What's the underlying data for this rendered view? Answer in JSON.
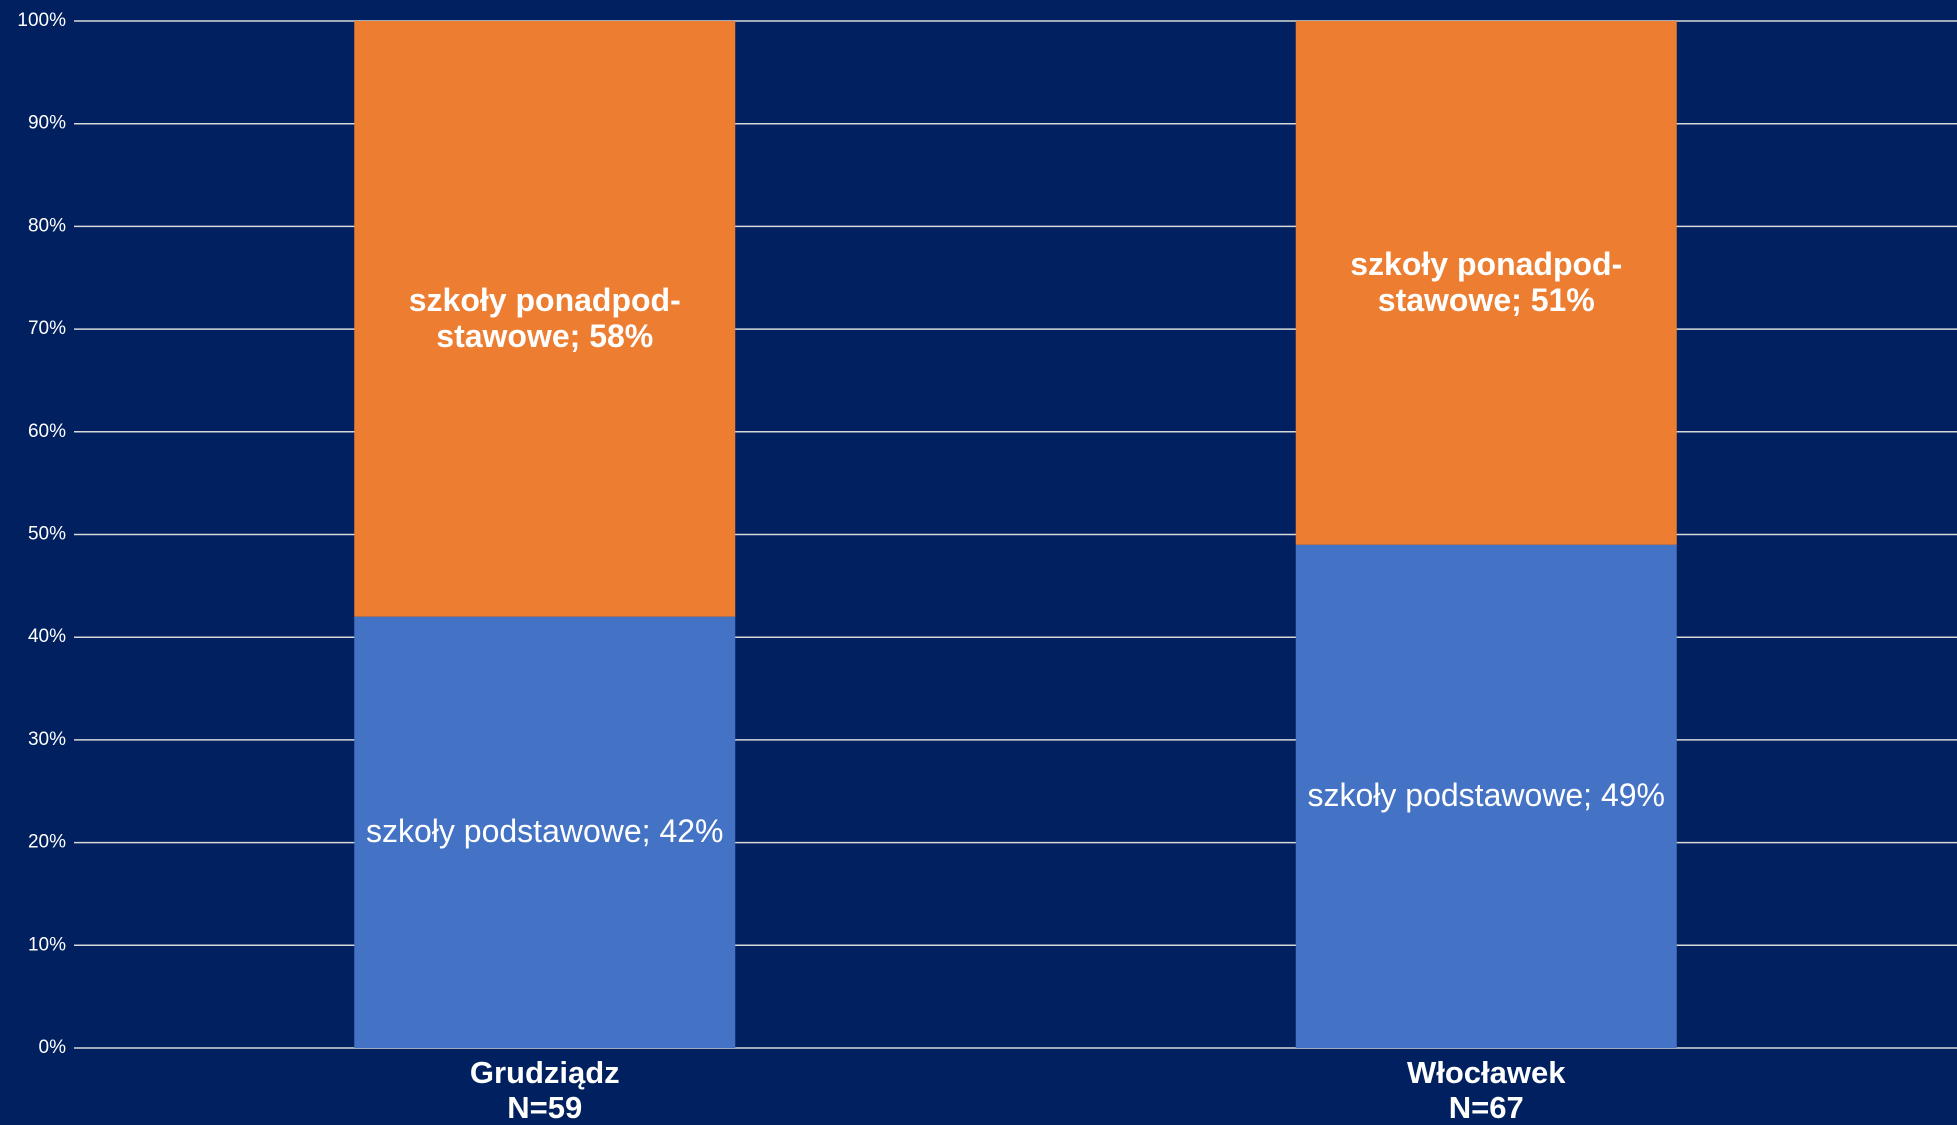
{
  "chart_data": {
    "type": "stacked_bar",
    "categories": [
      "Grudziądz\nN=59",
      "Włocławek\nN=67"
    ],
    "series": [
      {
        "color": "#4472c4",
        "values": [
          42,
          49
        ],
        "value_labels": [
          "szkoły podstawowe; 42%",
          "szkoły podstawowe; 49%"
        ]
      },
      {
        "color": "#ed7d31",
        "values": [
          58,
          51
        ],
        "value_labels": [
          "szkoły ponadpod-\nstawowe; 58%",
          "szkoły ponadpod-\nstawowe; 51%"
        ]
      }
    ],
    "ylim": [
      0,
      100
    ],
    "yticks": [
      {
        "value": 0,
        "label": "0%"
      },
      {
        "value": 10,
        "label": "10%"
      },
      {
        "value": 20,
        "label": "20%"
      },
      {
        "value": 30,
        "label": "30%"
      },
      {
        "value": 40,
        "label": "40%"
      },
      {
        "value": 50,
        "label": "50%"
      },
      {
        "value": 60,
        "label": "60%"
      },
      {
        "value": 70,
        "label": "70%"
      },
      {
        "value": 80,
        "label": "80%"
      },
      {
        "value": 90,
        "label": "90%"
      },
      {
        "value": 100,
        "label": "100%"
      }
    ],
    "grid": true
  }
}
